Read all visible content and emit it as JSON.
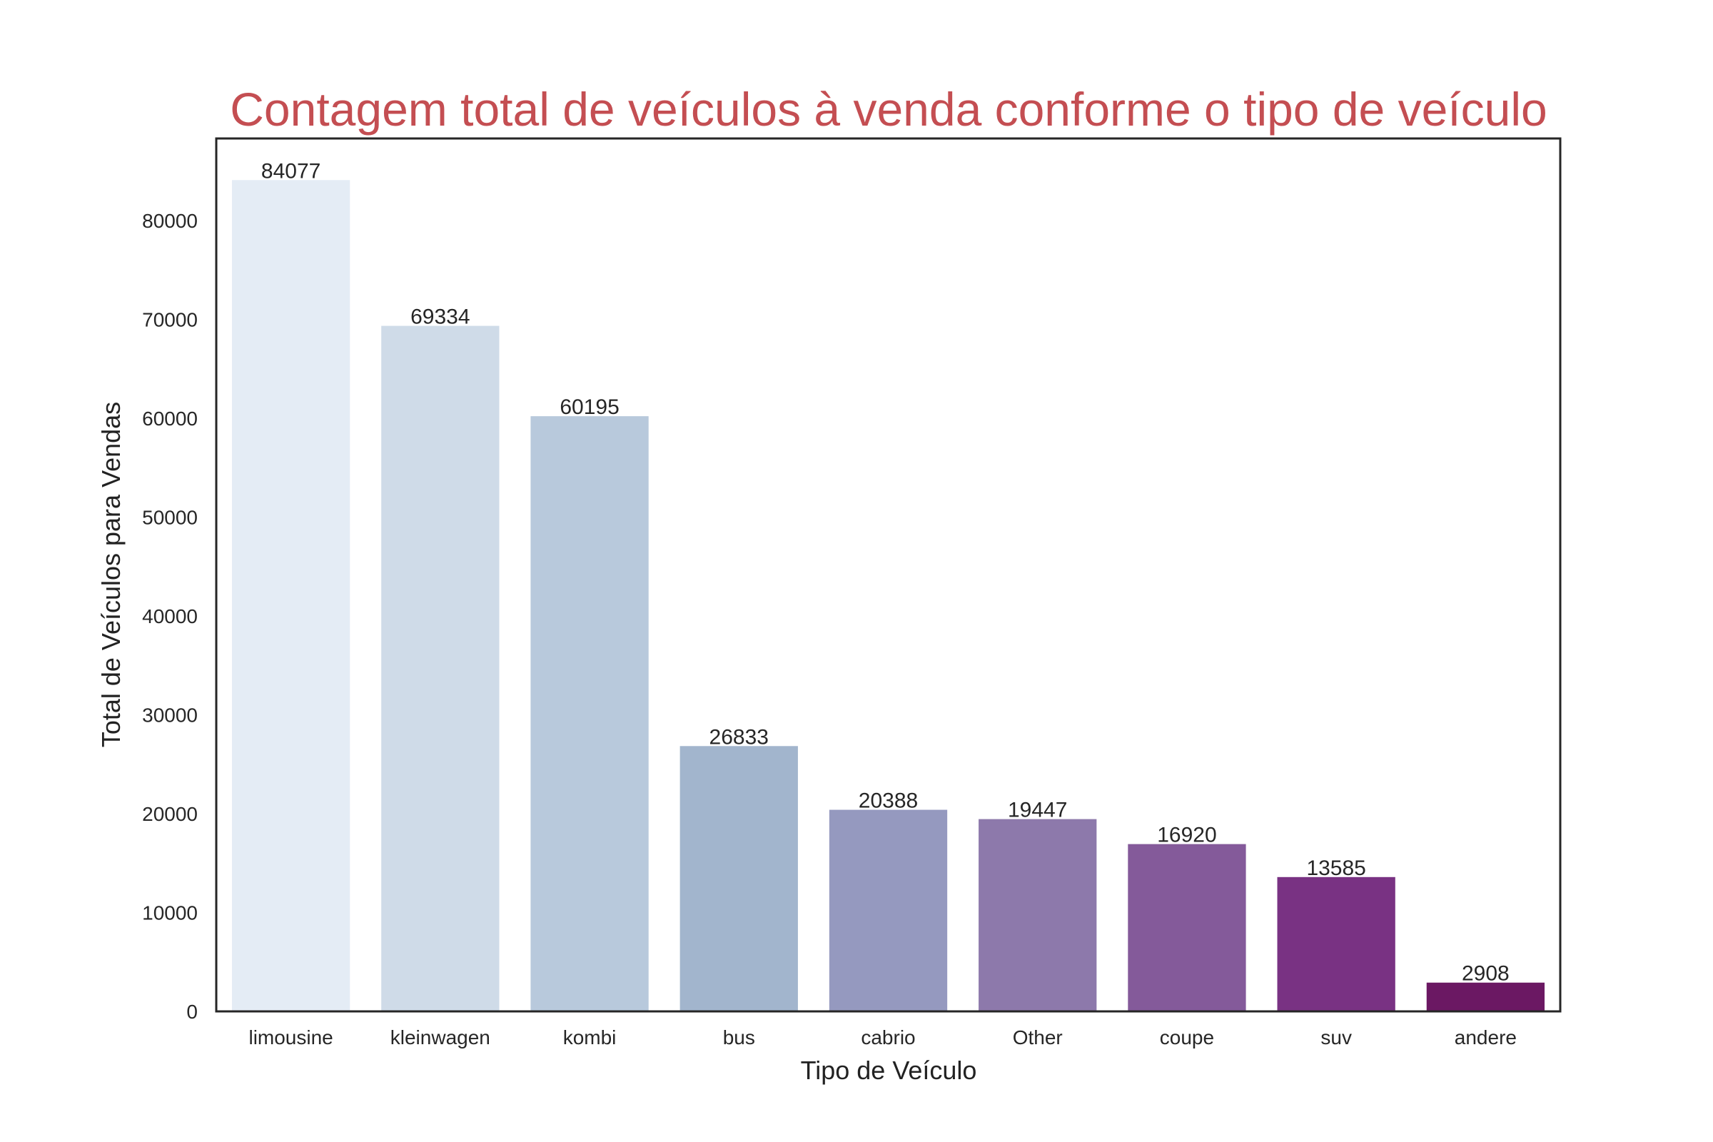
{
  "chart_data": {
    "type": "bar",
    "title": "Contagem total de veículos à venda conforme o tipo de veículo",
    "xlabel": "Tipo de Veículo",
    "ylabel": "Total de Veículos para Vendas",
    "categories": [
      "limousine",
      "kleinwagen",
      "kombi",
      "bus",
      "cabrio",
      "Other",
      "coupe",
      "suv",
      "andere"
    ],
    "values": [
      84077,
      69334,
      60195,
      26833,
      20388,
      19447,
      16920,
      13585,
      2908
    ],
    "data_labels": [
      "84077",
      "69334",
      "60195",
      "26833",
      "20388",
      "19447",
      "16920",
      "13585",
      "2908"
    ],
    "y_ticks": [
      0,
      10000,
      20000,
      30000,
      40000,
      50000,
      60000,
      70000,
      80000
    ],
    "y_tick_labels": [
      "0",
      "10000",
      "20000",
      "30000",
      "40000",
      "50000",
      "60000",
      "70000",
      "80000"
    ],
    "ylim": [
      0,
      88284
    ],
    "grid": false,
    "legend": "none",
    "bar_colors": [
      "#e4ecf5",
      "#cfdbe8",
      "#b8c9dc",
      "#a2b5cd",
      "#9599bf",
      "#8d79ab",
      "#845a9a",
      "#793283",
      "#6b1863"
    ],
    "title_color": "#c44e52"
  }
}
